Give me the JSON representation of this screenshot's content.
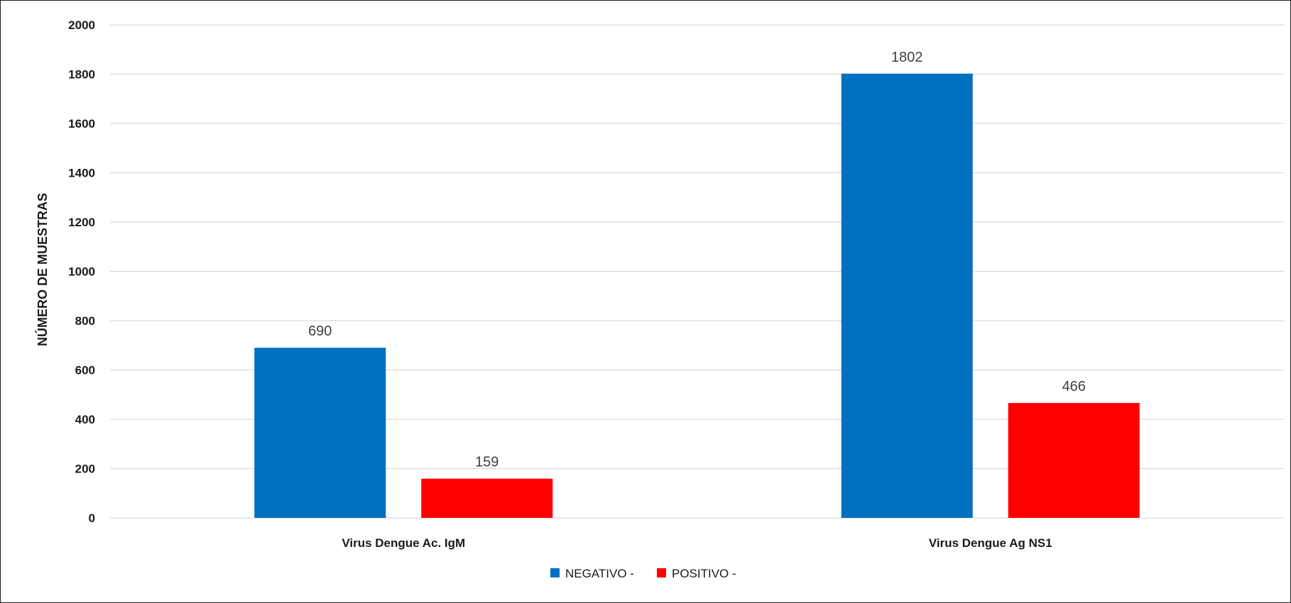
{
  "chart_data": {
    "type": "bar",
    "categories": [
      "Virus Dengue Ac. IgM",
      "Virus Dengue Ag NS1"
    ],
    "series": [
      {
        "name": "NEGATIVO -",
        "color": "#0070c0",
        "values": [
          690,
          1802
        ]
      },
      {
        "name": "POSITIVO -",
        "color": "#ff0000",
        "values": [
          159,
          466
        ]
      }
    ],
    "ylabel": "NÚMERO DE MUESTRAS",
    "xlabel": "",
    "ylim": [
      0,
      2000
    ],
    "yticks": [
      0,
      200,
      400,
      600,
      800,
      1000,
      1200,
      1400,
      1600,
      1800,
      2000
    ],
    "grid": true,
    "legend_position": "bottom"
  }
}
